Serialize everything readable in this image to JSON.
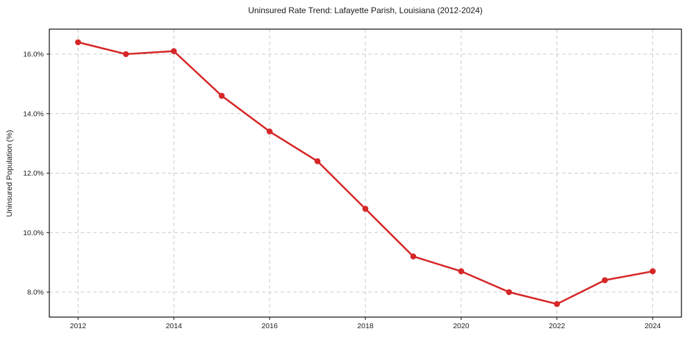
{
  "chart_data": {
    "type": "line",
    "title": "Uninsured Rate Trend: Lafayette Parish, Louisiana (2012-2024)",
    "xlabel": "",
    "ylabel": "Uninsured Population (%)",
    "x": [
      2012,
      2013,
      2014,
      2015,
      2016,
      2017,
      2018,
      2019,
      2020,
      2021,
      2022,
      2023,
      2024
    ],
    "values": [
      16.4,
      16.0,
      16.1,
      14.6,
      13.4,
      12.4,
      10.8,
      9.2,
      8.7,
      8.0,
      7.6,
      8.4,
      8.7
    ],
    "x_ticks": [
      2012,
      2014,
      2016,
      2018,
      2020,
      2022,
      2024
    ],
    "y_ticks": [
      8.0,
      10.0,
      12.0,
      14.0,
      16.0
    ],
    "y_tick_suffix": "%",
    "xlim": [
      2011.4,
      2024.6
    ],
    "ylim": [
      7.16,
      16.84
    ],
    "grid": "dashed",
    "legend": "none",
    "line_color": "#d62728",
    "grid_color": "#c9c9c9",
    "spine_color": "#1a1a1a",
    "marker": "circle"
  }
}
